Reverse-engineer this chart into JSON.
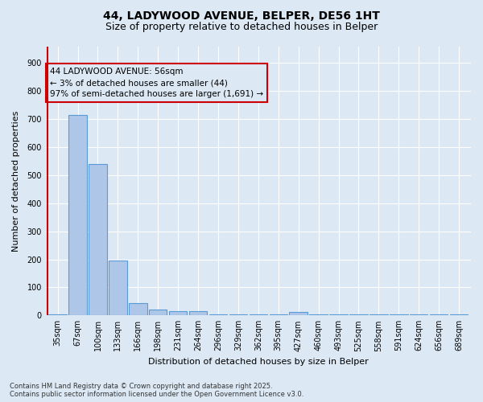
{
  "title_line1": "44, LADYWOOD AVENUE, BELPER, DE56 1HT",
  "title_line2": "Size of property relative to detached houses in Belper",
  "xlabel": "Distribution of detached houses by size in Belper",
  "ylabel": "Number of detached properties",
  "categories": [
    "35sqm",
    "67sqm",
    "100sqm",
    "133sqm",
    "166sqm",
    "198sqm",
    "231sqm",
    "264sqm",
    "296sqm",
    "329sqm",
    "362sqm",
    "395sqm",
    "427sqm",
    "460sqm",
    "493sqm",
    "525sqm",
    "558sqm",
    "591sqm",
    "624sqm",
    "656sqm",
    "689sqm"
  ],
  "values": [
    5,
    715,
    540,
    195,
    45,
    20,
    15,
    15,
    5,
    3,
    5,
    3,
    12,
    3,
    3,
    3,
    3,
    3,
    3,
    3,
    3
  ],
  "bar_color": "#aec6e8",
  "bar_edge_color": "#5b9bd5",
  "annotation_box_color": "#cc0000",
  "annotation_line_color": "#cc0000",
  "vline_x_index": 0,
  "annotation_text_line1": "44 LADYWOOD AVENUE: 56sqm",
  "annotation_text_line2": "← 3% of detached houses are smaller (44)",
  "annotation_text_line3": "97% of semi-detached houses are larger (1,691) →",
  "annotation_fontsize": 7.5,
  "ylim": [
    0,
    960
  ],
  "yticks": [
    0,
    100,
    200,
    300,
    400,
    500,
    600,
    700,
    800,
    900
  ],
  "bg_color": "#dce9f5",
  "footer_line1": "Contains HM Land Registry data © Crown copyright and database right 2025.",
  "footer_line2": "Contains public sector information licensed under the Open Government Licence v3.0.",
  "title_fontsize": 10,
  "subtitle_fontsize": 9,
  "tick_fontsize": 7,
  "xlabel_fontsize": 8,
  "ylabel_fontsize": 8,
  "footer_fontsize": 6
}
